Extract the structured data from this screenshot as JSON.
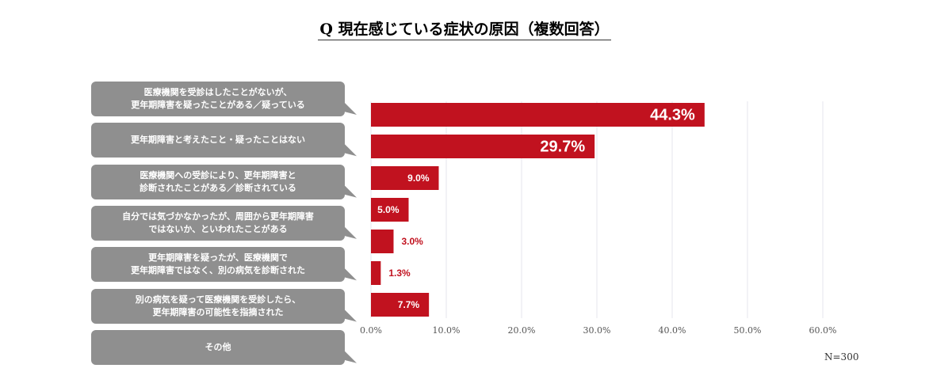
{
  "chart_data": {
    "type": "bar",
    "orientation": "horizontal",
    "title": "Q 現在感じている症状の原因（複数回答）",
    "categories": [
      "医療機関を受診はしたことがないが、\n更年期障害を疑ったことがある／疑っている",
      "更年期障害と考えたこと・疑ったことはない",
      "医療機関への受診により、更年期障害と\n診断されたことがある／診断されている",
      "自分では気づかなかったが、周囲から更年期障害\nではないか、といわれたことがある",
      "更年期障害を疑ったが、医療機関で\n更年期障害ではなく、別の病気を診断された",
      "別の病気を疑って医療機関を受診したら、\n更年期障害の可能性を指摘された",
      "その他"
    ],
    "values": [
      44.3,
      29.7,
      9.0,
      5.0,
      3.0,
      1.3,
      7.7
    ],
    "value_labels": [
      "44.3%",
      "29.7%",
      "9.0%",
      "5.0%",
      "3.0%",
      "1.3%",
      "7.7%"
    ],
    "color": "#c1121f",
    "xlim": [
      0,
      60
    ],
    "xticks": [
      {
        "value": 0,
        "label": "0.0%"
      },
      {
        "value": 10,
        "label": "10.0%"
      },
      {
        "value": 20,
        "label": "20.0%"
      },
      {
        "value": 30,
        "label": "30.0%"
      },
      {
        "value": 40,
        "label": "40.0%"
      },
      {
        "value": 50,
        "label": "50.0%"
      },
      {
        "value": 60,
        "label": "60.0%"
      }
    ],
    "grid": true,
    "note": "N=300"
  }
}
